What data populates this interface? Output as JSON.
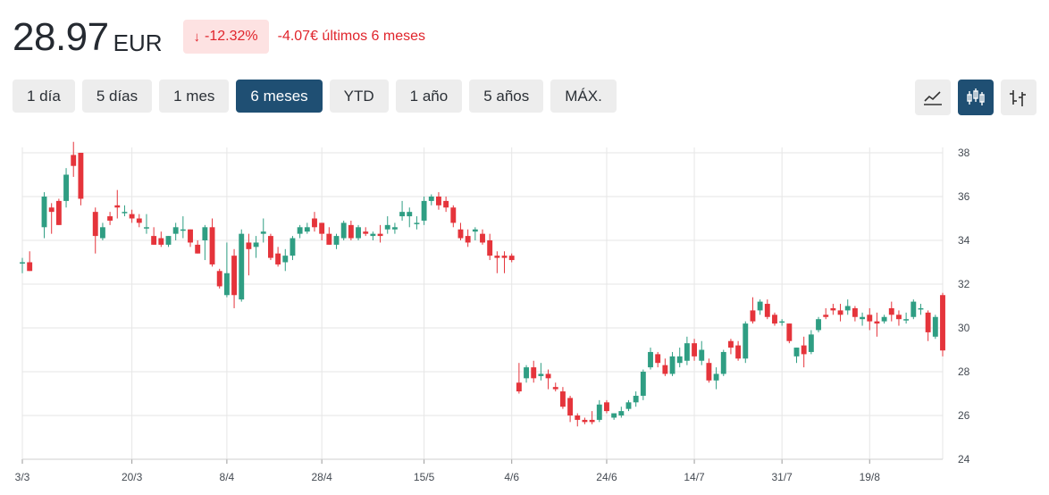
{
  "quote": {
    "price": "28.97",
    "currency": "EUR",
    "change_arrow": "↓",
    "change_percent": "-12.32%",
    "change_text": "-4.07€ últimos 6 meses"
  },
  "colors": {
    "up": "#2f9e83",
    "down": "#e5343b",
    "active_button": "#1f4f73",
    "button": "#ededed",
    "grid": "#e6e6e6"
  },
  "ranges": [
    {
      "label": "1 día",
      "active": false
    },
    {
      "label": "5 días",
      "active": false
    },
    {
      "label": "1 mes",
      "active": false
    },
    {
      "label": "6 meses",
      "active": true
    },
    {
      "label": "YTD",
      "active": false
    },
    {
      "label": "1 año",
      "active": false
    },
    {
      "label": "5 años",
      "active": false
    },
    {
      "label": "MÁX.",
      "active": false
    }
  ],
  "chart_types": [
    {
      "icon": "line-chart-icon",
      "active": false
    },
    {
      "icon": "candlestick-icon",
      "active": true
    },
    {
      "icon": "ohlc-bars-icon",
      "active": false
    }
  ],
  "chart_data": {
    "type": "candlestick",
    "title": "",
    "xlabel": "",
    "ylabel": "",
    "ylim": [
      24,
      38
    ],
    "y_ticks": [
      24,
      26,
      28,
      30,
      32,
      34,
      36,
      38
    ],
    "x_ticks": [
      "3/3",
      "20/3",
      "8/4",
      "28/4",
      "15/5",
      "4/6",
      "24/6",
      "14/7",
      "31/7",
      "19/8"
    ],
    "grid": true,
    "candles": [
      [
        0,
        "3/3",
        33.0,
        33.2,
        32.5,
        33.0
      ],
      [
        1,
        "",
        33.0,
        33.5,
        32.6,
        32.6
      ],
      [
        3,
        "",
        34.6,
        36.2,
        34.1,
        36.0
      ],
      [
        4,
        "",
        35.5,
        35.7,
        34.3,
        35.3
      ],
      [
        5,
        "",
        35.8,
        35.9,
        34.7,
        34.7
      ],
      [
        6,
        "",
        35.8,
        37.3,
        35.5,
        37.0
      ],
      [
        7,
        "",
        37.9,
        38.5,
        36.9,
        37.4
      ],
      [
        8,
        "",
        38.0,
        38.0,
        35.6,
        35.9
      ],
      [
        10,
        "",
        35.3,
        35.5,
        33.4,
        34.2
      ],
      [
        11,
        "",
        34.1,
        34.8,
        34.0,
        34.6
      ],
      [
        12,
        "",
        35.1,
        35.3,
        34.7,
        34.9
      ],
      [
        13,
        "",
        35.6,
        36.3,
        35.0,
        35.5
      ],
      [
        14,
        "",
        35.3,
        35.6,
        35.1,
        35.3
      ],
      [
        15,
        "20/3",
        35.2,
        35.4,
        34.8,
        35.0
      ],
      [
        16,
        "",
        35.0,
        35.2,
        34.6,
        34.8
      ],
      [
        17,
        "",
        34.6,
        35.2,
        34.3,
        34.6
      ],
      [
        18,
        "",
        34.2,
        34.6,
        33.8,
        33.8
      ],
      [
        19,
        "",
        34.1,
        34.4,
        33.7,
        33.8
      ],
      [
        20,
        "",
        33.8,
        34.2,
        33.7,
        34.2
      ],
      [
        21,
        "",
        34.3,
        34.8,
        34.0,
        34.6
      ],
      [
        22,
        "",
        34.5,
        35.1,
        34.1,
        34.5
      ],
      [
        23,
        "",
        34.5,
        34.5,
        33.7,
        33.9
      ],
      [
        24,
        "",
        33.8,
        34.0,
        33.4,
        33.4
      ],
      [
        25,
        "",
        34.0,
        34.7,
        33.1,
        34.6
      ],
      [
        26,
        "",
        34.6,
        35.0,
        32.8,
        32.9
      ],
      [
        27,
        "",
        32.6,
        32.7,
        31.8,
        31.9
      ],
      [
        28,
        "8/4",
        31.5,
        33.9,
        31.4,
        32.5
      ],
      [
        29,
        "",
        33.3,
        33.6,
        30.9,
        31.5
      ],
      [
        30,
        "",
        31.3,
        34.5,
        31.2,
        34.3
      ],
      [
        31,
        "",
        33.9,
        34.3,
        32.4,
        33.6
      ],
      [
        32,
        "",
        33.7,
        34.2,
        33.2,
        33.9
      ],
      [
        33,
        "",
        34.3,
        35.0,
        33.9,
        34.4
      ],
      [
        34,
        "",
        34.2,
        34.3,
        33.1,
        33.2
      ],
      [
        35,
        "",
        33.4,
        33.7,
        32.8,
        32.9
      ],
      [
        36,
        "",
        33.0,
        33.6,
        32.6,
        33.3
      ],
      [
        37,
        "",
        33.3,
        34.2,
        33.1,
        34.1
      ],
      [
        38,
        "",
        34.3,
        34.7,
        34.1,
        34.6
      ],
      [
        39,
        "",
        34.4,
        34.8,
        34.3,
        34.6
      ],
      [
        40,
        "",
        35.0,
        35.3,
        34.4,
        34.6
      ],
      [
        41,
        "28/4",
        34.8,
        34.8,
        34.0,
        34.3
      ],
      [
        42,
        "",
        34.3,
        34.6,
        33.8,
        33.8
      ],
      [
        43,
        "",
        33.8,
        34.3,
        33.6,
        34.2
      ],
      [
        44,
        "",
        34.1,
        34.9,
        34.0,
        34.8
      ],
      [
        45,
        "",
        34.7,
        34.9,
        34.0,
        34.1
      ],
      [
        46,
        "",
        34.1,
        34.7,
        34.0,
        34.6
      ],
      [
        47,
        "",
        34.4,
        34.6,
        34.2,
        34.3
      ],
      [
        48,
        "",
        34.2,
        34.4,
        34.0,
        34.3
      ],
      [
        49,
        "",
        34.3,
        34.7,
        33.9,
        34.2
      ],
      [
        50,
        "",
        34.5,
        35.1,
        34.3,
        34.7
      ],
      [
        51,
        "",
        34.5,
        34.8,
        34.3,
        34.6
      ],
      [
        52,
        "",
        35.1,
        35.8,
        34.9,
        35.3
      ],
      [
        53,
        "",
        35.1,
        35.5,
        34.6,
        35.3
      ],
      [
        54,
        "",
        34.8,
        35.1,
        34.5,
        34.8
      ],
      [
        55,
        "15/5",
        34.9,
        36.0,
        34.7,
        35.8
      ],
      [
        56,
        "",
        35.8,
        36.1,
        35.6,
        36.0
      ],
      [
        57,
        "",
        36.0,
        36.2,
        35.4,
        35.6
      ],
      [
        58,
        "",
        35.8,
        36.0,
        35.3,
        35.5
      ],
      [
        59,
        "",
        35.5,
        35.6,
        34.6,
        34.8
      ],
      [
        60,
        "",
        34.5,
        34.8,
        34.0,
        34.1
      ],
      [
        61,
        "",
        34.2,
        34.5,
        33.7,
        33.9
      ],
      [
        62,
        "",
        34.4,
        34.6,
        34.0,
        34.5
      ],
      [
        63,
        "",
        34.3,
        34.5,
        33.8,
        33.9
      ],
      [
        64,
        "",
        34.0,
        34.3,
        33.1,
        33.3
      ],
      [
        65,
        "",
        33.3,
        33.5,
        32.5,
        33.2
      ],
      [
        66,
        "",
        33.3,
        33.5,
        32.5,
        33.2
      ],
      [
        67,
        "4/6",
        33.3,
        33.4,
        33.0,
        33.1
      ],
      [
        68,
        "",
        27.5,
        28.4,
        27.0,
        27.1
      ],
      [
        69,
        "",
        27.7,
        28.3,
        27.5,
        28.2
      ],
      [
        70,
        "",
        28.2,
        28.5,
        27.5,
        27.7
      ],
      [
        71,
        "",
        27.8,
        28.4,
        27.6,
        27.9
      ],
      [
        72,
        "",
        27.9,
        28.1,
        27.2,
        27.7
      ],
      [
        73,
        "",
        27.3,
        27.5,
        27.1,
        27.2
      ],
      [
        74,
        "",
        27.1,
        27.3,
        26.3,
        26.4
      ],
      [
        75,
        "",
        26.8,
        26.9,
        25.7,
        26.0
      ],
      [
        76,
        "",
        26.0,
        26.1,
        25.5,
        25.8
      ],
      [
        77,
        "",
        25.8,
        25.9,
        25.6,
        25.7
      ],
      [
        78,
        "",
        25.8,
        26.2,
        25.6,
        25.7
      ],
      [
        79,
        "",
        25.8,
        26.7,
        25.7,
        26.5
      ],
      [
        80,
        "24/6",
        26.6,
        26.7,
        26.1,
        26.2
      ],
      [
        81,
        "",
        25.9,
        26.1,
        25.8,
        26.1
      ],
      [
        82,
        "",
        26.0,
        26.4,
        25.9,
        26.2
      ],
      [
        83,
        "",
        26.3,
        26.7,
        26.2,
        26.6
      ],
      [
        84,
        "",
        26.6,
        27.1,
        26.4,
        26.9
      ],
      [
        85,
        "",
        26.9,
        28.1,
        26.7,
        28.0
      ],
      [
        86,
        "",
        28.2,
        29.1,
        28.1,
        28.9
      ],
      [
        87,
        "",
        28.8,
        28.9,
        28.2,
        28.4
      ],
      [
        88,
        "",
        28.3,
        28.6,
        27.8,
        27.9
      ],
      [
        89,
        "",
        27.9,
        28.9,
        27.8,
        28.7
      ],
      [
        90,
        "",
        28.4,
        29.1,
        28.2,
        28.7
      ],
      [
        91,
        "",
        28.5,
        29.6,
        28.3,
        29.3
      ],
      [
        92,
        "14/7",
        29.3,
        29.5,
        28.5,
        28.7
      ],
      [
        93,
        "",
        28.5,
        29.4,
        28.3,
        29.0
      ],
      [
        94,
        "",
        28.4,
        28.6,
        27.5,
        27.6
      ],
      [
        95,
        "",
        27.6,
        28.2,
        27.2,
        27.9
      ],
      [
        96,
        "",
        27.9,
        29.0,
        27.8,
        28.9
      ],
      [
        97,
        "",
        29.4,
        29.5,
        28.8,
        29.1
      ],
      [
        98,
        "",
        29.2,
        29.4,
        28.5,
        28.6
      ],
      [
        99,
        "",
        28.6,
        30.3,
        28.4,
        30.2
      ],
      [
        100,
        "",
        30.8,
        31.4,
        30.2,
        30.3
      ],
      [
        101,
        "",
        30.8,
        31.3,
        30.6,
        31.2
      ],
      [
        102,
        "",
        31.1,
        31.3,
        30.4,
        30.5
      ],
      [
        103,
        "",
        30.6,
        30.7,
        30.1,
        30.2
      ],
      [
        104,
        "31/7",
        30.3,
        30.4,
        30.1,
        30.3
      ],
      [
        105,
        "",
        30.2,
        30.2,
        29.3,
        29.4
      ],
      [
        106,
        "",
        28.7,
        29.1,
        28.4,
        29.1
      ],
      [
        107,
        "",
        29.2,
        29.6,
        28.2,
        28.8
      ],
      [
        108,
        "",
        28.9,
        29.9,
        28.8,
        29.7
      ],
      [
        109,
        "",
        29.9,
        30.5,
        29.8,
        30.4
      ],
      [
        110,
        "",
        30.6,
        30.9,
        30.4,
        30.5
      ],
      [
        111,
        "",
        30.9,
        31.1,
        30.6,
        30.8
      ],
      [
        112,
        "",
        30.8,
        31.1,
        30.3,
        30.6
      ],
      [
        113,
        "",
        30.8,
        31.3,
        30.6,
        31.0
      ],
      [
        114,
        "",
        30.9,
        31.0,
        30.3,
        30.5
      ],
      [
        115,
        "",
        30.4,
        30.7,
        30.1,
        30.5
      ],
      [
        116,
        "19/8",
        30.6,
        30.9,
        29.9,
        30.3
      ],
      [
        117,
        "",
        30.3,
        30.7,
        29.6,
        30.2
      ],
      [
        118,
        "",
        30.3,
        30.6,
        30.2,
        30.5
      ],
      [
        119,
        "",
        30.9,
        31.2,
        30.3,
        30.6
      ],
      [
        120,
        "",
        30.6,
        30.8,
        30.1,
        30.4
      ],
      [
        121,
        "",
        30.4,
        30.7,
        30.2,
        30.4
      ],
      [
        122,
        "",
        30.5,
        31.3,
        30.4,
        31.2
      ],
      [
        123,
        "",
        30.9,
        31.1,
        30.6,
        30.9
      ],
      [
        124,
        "",
        30.7,
        30.8,
        29.4,
        29.8
      ],
      [
        125,
        "",
        29.6,
        30.6,
        29.5,
        30.5
      ],
      [
        126,
        "",
        31.5,
        31.6,
        28.7,
        28.97
      ]
    ]
  }
}
